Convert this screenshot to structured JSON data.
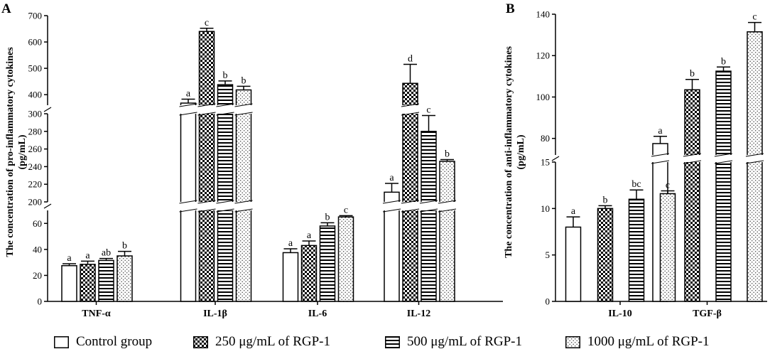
{
  "legend": [
    {
      "label": "Control group",
      "pattern": "white"
    },
    {
      "label": "250 μg/mL of RGP-1",
      "pattern": "check"
    },
    {
      "label": "500 μg/mL of RGP-1",
      "pattern": "hline"
    },
    {
      "label": "1000 μg/mL of RGP-1",
      "pattern": "dots"
    }
  ],
  "chart_data": [
    {
      "panel": "A",
      "type": "bar",
      "ylabel": [
        "The concentration of pro-inflammatory cytokines",
        "(pg/mL)"
      ],
      "categories": [
        "TNF-α",
        "IL-1β",
        "IL-6",
        "IL-12"
      ],
      "series": [
        {
          "name": "Control group",
          "values": [
            27.5,
            368,
            37.5,
            211
          ],
          "errors": [
            1.5,
            15,
            3,
            10
          ],
          "labels": [
            "a",
            "a",
            "a",
            "a"
          ]
        },
        {
          "name": "250 μg/mL of RGP-1",
          "values": [
            28.5,
            640,
            43,
            443
          ],
          "errors": [
            2.5,
            12,
            3.5,
            72
          ],
          "labels": [
            "a",
            "c",
            "a",
            "d"
          ]
        },
        {
          "name": "500 μg/mL of RGP-1",
          "values": [
            31.5,
            438,
            58,
            280
          ],
          "errors": [
            1.5,
            14,
            2.5,
            18
          ],
          "labels": [
            "ab",
            "b",
            "b",
            "c"
          ]
        },
        {
          "name": "1000 μg/mL of RGP-1",
          "values": [
            35,
            418,
            65,
            246
          ],
          "errors": [
            3.5,
            14,
            1,
            2
          ],
          "labels": [
            "b",
            "b",
            "c",
            "b"
          ]
        }
      ],
      "y_segments": [
        {
          "range": [
            0,
            70
          ],
          "ticks": [
            0,
            20,
            40,
            60
          ]
        },
        {
          "range": [
            200,
            300
          ],
          "ticks": [
            200,
            220,
            240,
            260,
            280,
            300
          ]
        },
        {
          "range": [
            360,
            700
          ],
          "ticks": [
            400,
            500,
            600,
            700
          ]
        }
      ]
    },
    {
      "panel": "B",
      "type": "bar",
      "ylabel": [
        "The concentration of anti-inflammatory cytokines",
        "(pg/mL)"
      ],
      "categories": [
        "IL-10",
        "TGF-β"
      ],
      "series": [
        {
          "name": "Control group",
          "values": [
            8,
            77.5
          ],
          "errors": [
            1.1,
            3.5
          ],
          "labels": [
            "a",
            "a"
          ]
        },
        {
          "name": "250 μg/mL of RGP-1",
          "values": [
            10,
            103.5
          ],
          "errors": [
            0.3,
            5
          ],
          "labels": [
            "b",
            "b"
          ]
        },
        {
          "name": "500 μg/mL of RGP-1",
          "values": [
            11,
            112.5
          ],
          "errors": [
            1,
            2
          ],
          "labels": [
            "bc",
            "b"
          ]
        },
        {
          "name": "1000 μg/mL of RGP-1",
          "values": [
            11.6,
            131.5
          ],
          "errors": [
            0.3,
            4.5
          ],
          "labels": [
            "c",
            "c"
          ]
        }
      ],
      "y_segments": [
        {
          "range": [
            0,
            15
          ],
          "ticks": [
            0,
            5,
            10,
            15
          ]
        },
        {
          "range": [
            72,
            140
          ],
          "ticks": [
            80,
            100,
            120,
            140
          ]
        }
      ]
    }
  ]
}
